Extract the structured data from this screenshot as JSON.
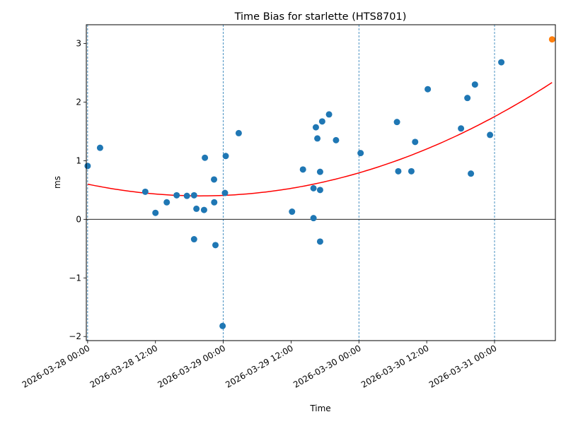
{
  "chart_data": {
    "type": "scatter",
    "title": "Time Bias for starlette (HTS8701)",
    "xlabel": "Time",
    "ylabel": "ms",
    "x_ticks": [
      "2026-03-28 00:00",
      "2026-03-28 12:00",
      "2026-03-29 00:00",
      "2026-03-29 12:00",
      "2026-03-30 00:00",
      "2026-03-30 12:00",
      "2026-03-31 00:00"
    ],
    "y_ticks": [
      "−2",
      "−1",
      "0",
      "1",
      "2",
      "3"
    ],
    "xlim": [
      "2026-03-27 23:46",
      "2026-03-31 10:46"
    ],
    "ylim": [
      -2.07,
      3.32
    ],
    "vertical_dashed_lines": [
      "2026-03-28 00:00",
      "2026-03-29 00:00",
      "2026-03-30 00:00",
      "2026-03-31 00:00"
    ],
    "horizontal_reference_line": 0,
    "grid": false,
    "legend": "none",
    "colors": {
      "points": "#1f77b4",
      "fit": "#ff0000",
      "latest": "#ff7f0e",
      "dashed": "#1f77b4",
      "zero_line": "#000000"
    },
    "series": [
      {
        "kind": "points",
        "x": [
          "2026-03-28 00:00",
          "2026-03-28 02:12",
          "2026-03-28 10:12",
          "2026-03-28 12:00",
          "2026-03-28 14:00",
          "2026-03-28 15:45",
          "2026-03-28 17:34",
          "2026-03-28 18:50",
          "2026-03-28 18:50",
          "2026-03-28 19:15",
          "2026-03-28 20:36",
          "2026-03-28 20:45",
          "2026-03-28 22:22",
          "2026-03-28 22:24",
          "2026-03-28 22:37",
          "2026-03-28 23:53",
          "2026-03-29 00:18",
          "2026-03-29 00:26",
          "2026-03-29 02:44",
          "2026-03-29 12:10",
          "2026-03-29 14:06",
          "2026-03-29 15:58",
          "2026-03-29 15:58",
          "2026-03-29 16:23",
          "2026-03-29 16:39",
          "2026-03-29 17:08",
          "2026-03-29 17:08",
          "2026-03-29 17:08",
          "2026-03-29 17:30",
          "2026-03-29 18:43",
          "2026-03-29 19:57",
          "2026-03-30 00:18",
          "2026-03-30 06:44",
          "2026-03-30 06:58",
          "2026-03-30 09:17",
          "2026-03-30 09:57",
          "2026-03-30 12:11",
          "2026-03-30 18:04",
          "2026-03-30 19:12",
          "2026-03-30 19:49",
          "2026-03-30 20:32",
          "2026-03-30 23:12",
          "2026-03-31 01:12"
        ],
        "y": [
          0.91,
          1.22,
          0.47,
          0.11,
          0.29,
          0.41,
          0.4,
          0.41,
          -0.34,
          0.18,
          0.16,
          1.05,
          0.68,
          0.29,
          -0.44,
          -1.82,
          0.45,
          1.08,
          1.47,
          0.13,
          0.85,
          0.53,
          0.02,
          1.57,
          1.38,
          -0.38,
          0.5,
          0.81,
          1.67,
          1.79,
          1.35,
          1.13,
          1.66,
          0.82,
          0.82,
          1.32,
          2.22,
          1.55,
          2.07,
          0.78,
          2.3,
          1.44,
          2.68
        ]
      },
      {
        "kind": "quadratic_fit",
        "x_start": "2026-03-28 00:00",
        "x_end": "2026-03-31 10:11",
        "y_start": 0.6,
        "y_min": 0.4,
        "y_min_x": "2026-03-28 20:00",
        "y_end": 3.07
      },
      {
        "kind": "latest_point",
        "x": [
          "2026-03-31 10:11"
        ],
        "y": [
          3.07
        ]
      }
    ]
  }
}
